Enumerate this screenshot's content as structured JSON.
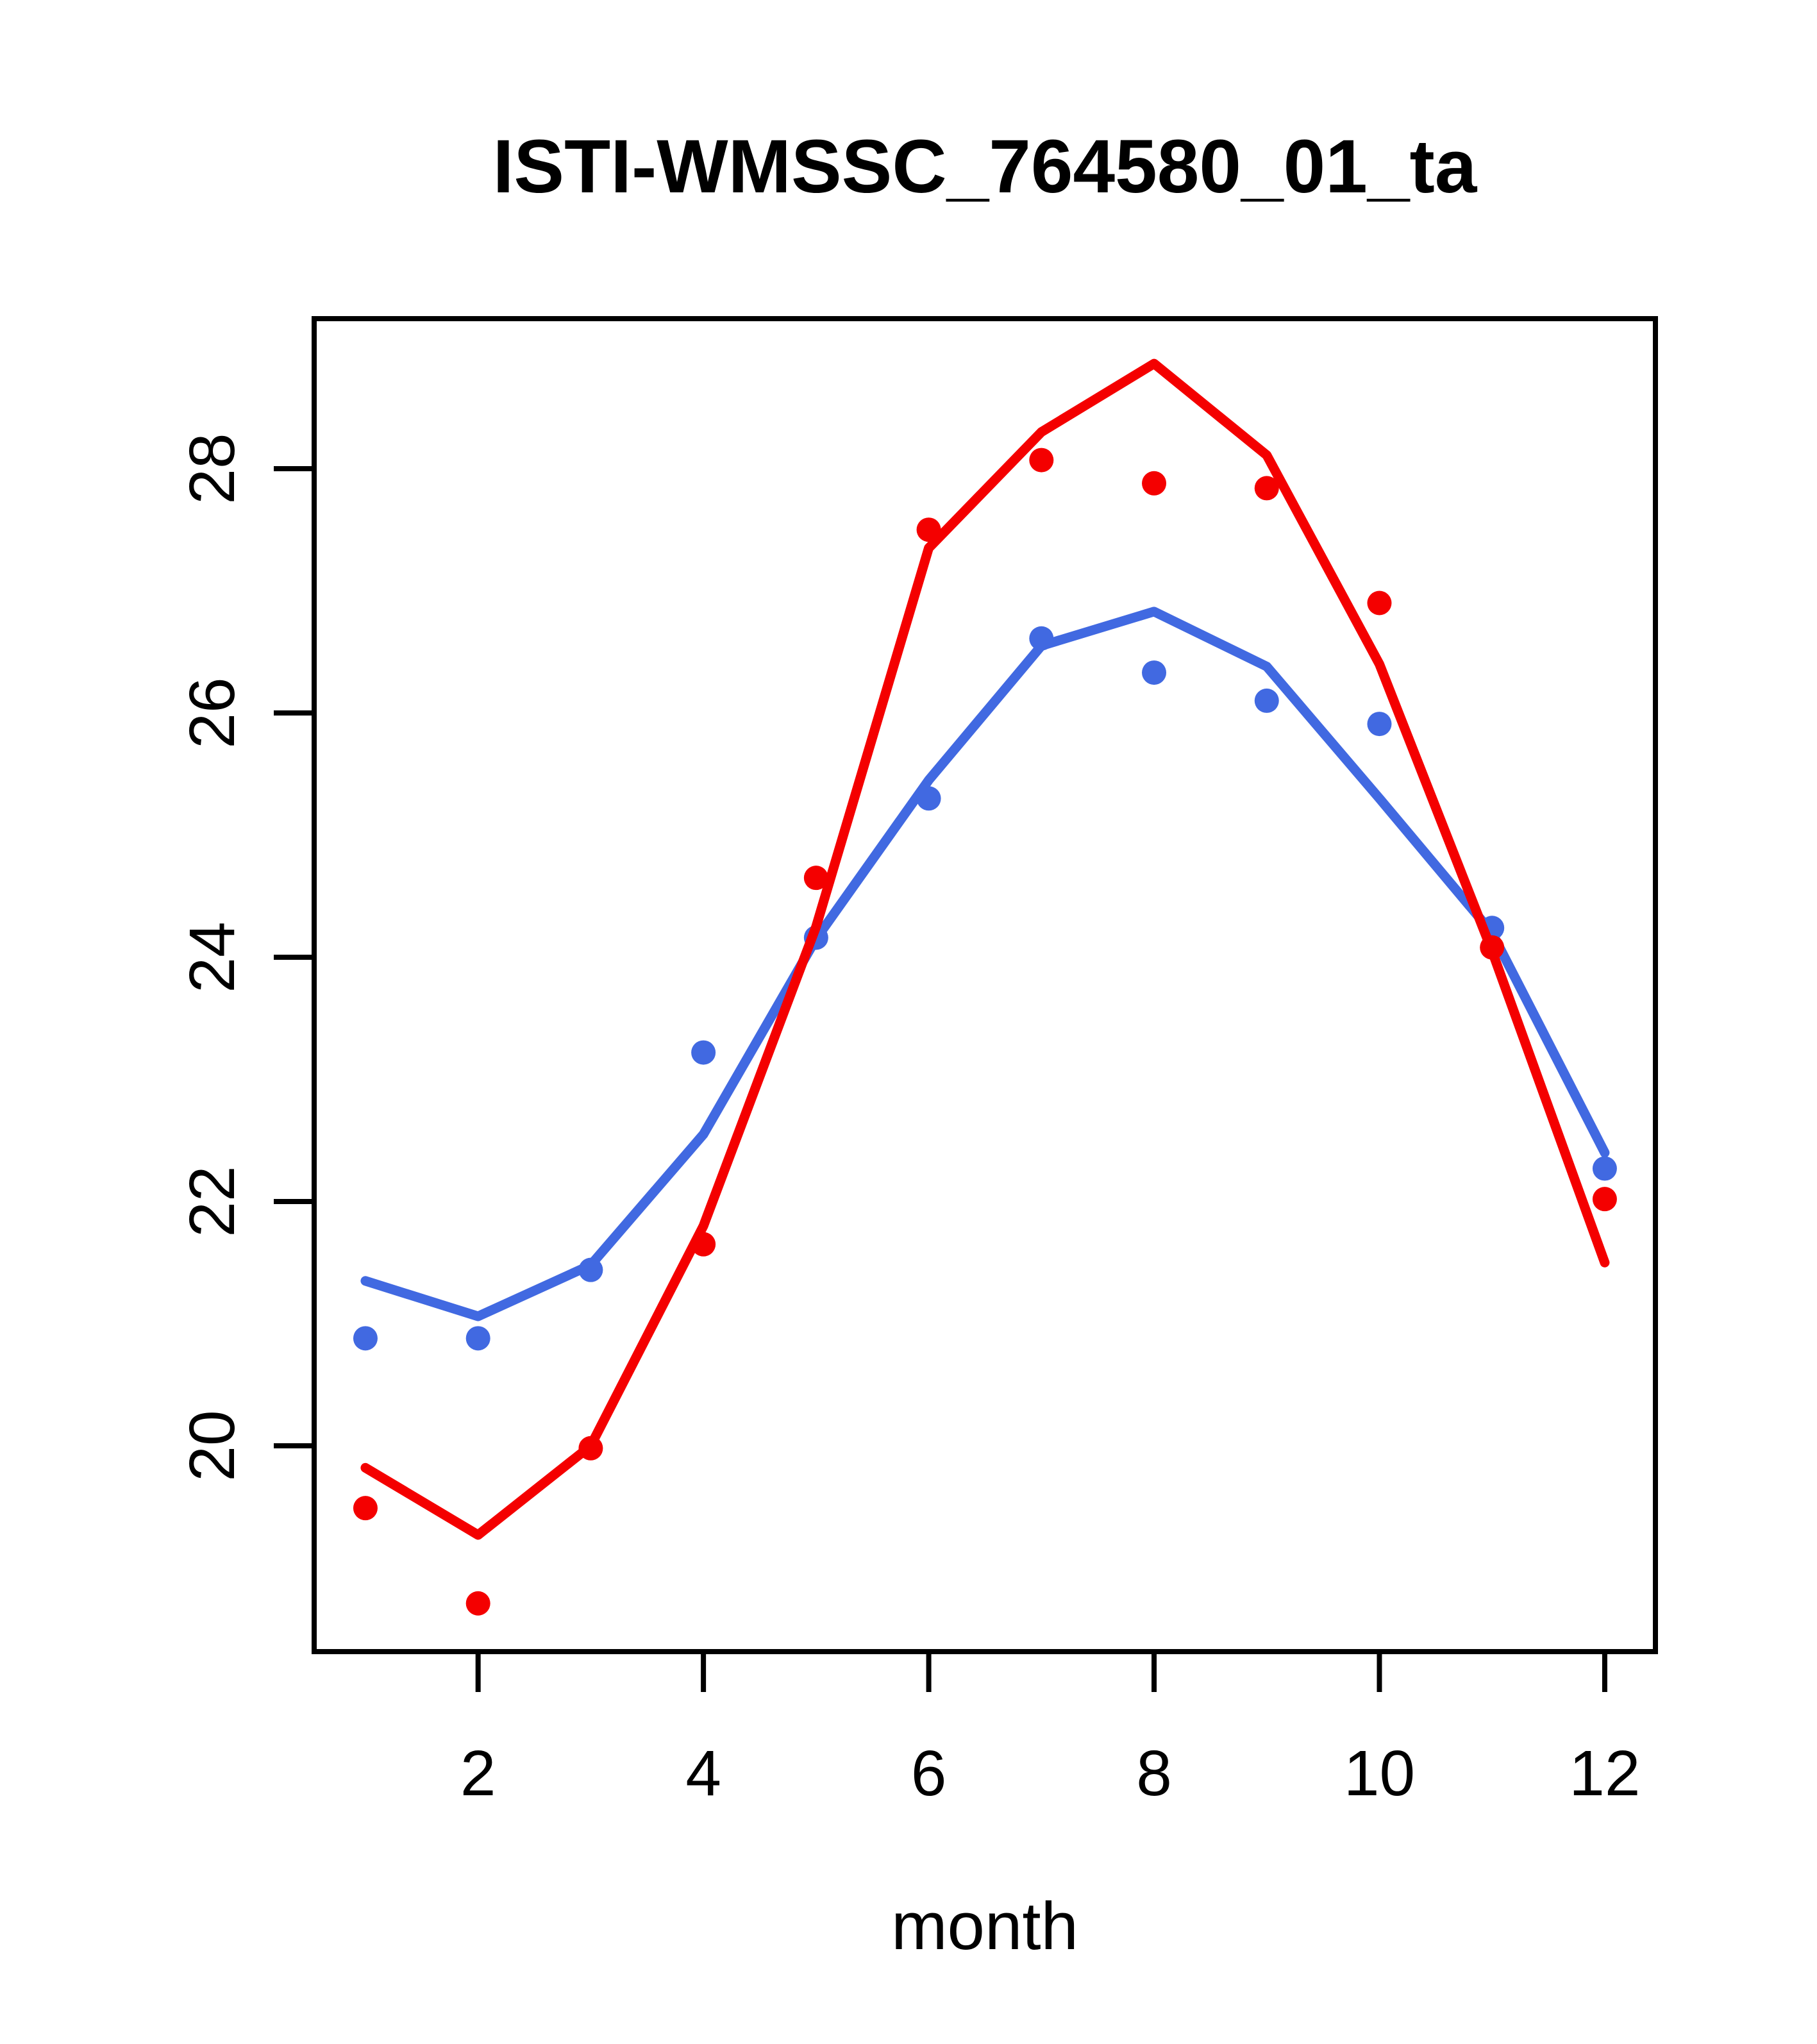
{
  "chart_data": {
    "type": "scatter",
    "title": "ISTI-WMSSC_764580_01_ta",
    "xlabel": "month",
    "ylabel": "",
    "x": [
      1,
      2,
      3,
      4,
      5,
      6,
      7,
      8,
      9,
      10,
      11,
      12
    ],
    "xticks": [
      2,
      4,
      6,
      8,
      10,
      12
    ],
    "yticks": [
      20,
      22,
      24,
      26,
      28
    ],
    "xlim": [
      0.545,
      12.45
    ],
    "ylim": [
      18.315,
      29.228
    ],
    "grid": false,
    "legend_position": "none",
    "colors": {
      "red": "#f40000",
      "blue": "#4169e1",
      "axis": "#000000",
      "background": "#ffffff"
    },
    "series": [
      {
        "name": "blue-fit-line",
        "role": "line",
        "color_key": "blue",
        "values": [
          21.35,
          21.06,
          21.48,
          22.55,
          24.15,
          25.45,
          26.55,
          26.83,
          26.38,
          25.3,
          24.2,
          22.4
        ]
      },
      {
        "name": "blue-points",
        "role": "points",
        "color_key": "blue",
        "values": [
          20.88,
          20.88,
          21.44,
          23.22,
          24.16,
          25.3,
          26.61,
          26.33,
          26.1,
          25.91,
          24.24,
          22.27
        ]
      },
      {
        "name": "red-fit-line",
        "role": "line",
        "color_key": "red",
        "values": [
          19.82,
          19.27,
          20.0,
          21.8,
          24.25,
          27.35,
          28.3,
          28.86,
          28.11,
          26.4,
          24.05,
          21.5
        ]
      },
      {
        "name": "red-points",
        "role": "points",
        "color_key": "red",
        "values": [
          19.49,
          18.71,
          19.98,
          21.65,
          24.65,
          27.5,
          28.07,
          27.88,
          27.84,
          26.9,
          24.08,
          22.02
        ]
      }
    ]
  }
}
